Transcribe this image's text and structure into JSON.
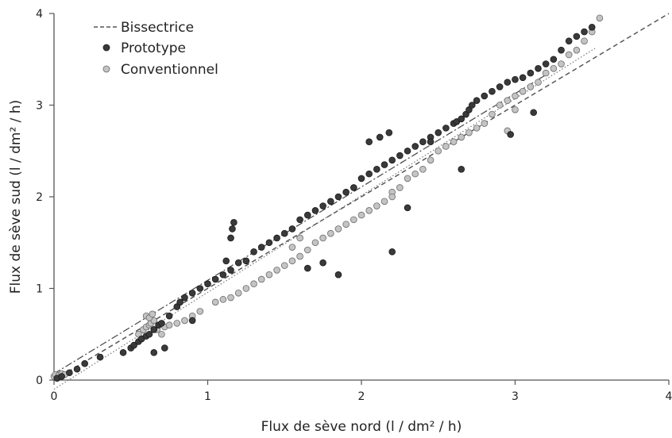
{
  "chart_data": {
    "type": "scatter",
    "xlabel": "Flux de sève nord (l / dm² / h)",
    "ylabel": "Flux de sève sud (l / dm² / h)",
    "xlim": [
      0,
      4
    ],
    "ylim": [
      0,
      4
    ],
    "xticks": [
      "0",
      "1",
      "2",
      "3",
      "4"
    ],
    "yticks": [
      "0",
      "1",
      "2",
      "3",
      "4"
    ],
    "grid": false,
    "legend_position": "top-left",
    "series": [
      {
        "name": "Bissectrice",
        "kind": "dashed-line",
        "color": "#555555",
        "x": [
          0,
          4
        ],
        "y": [
          0,
          4
        ]
      },
      {
        "name": "Prototype",
        "kind": "points",
        "color": "#3a3a3a",
        "edge": "#1a1a1a",
        "x": [
          0.02,
          0.05,
          0.1,
          0.15,
          0.2,
          0.3,
          0.45,
          0.5,
          0.52,
          0.55,
          0.57,
          0.6,
          0.62,
          0.65,
          0.68,
          0.7,
          0.75,
          0.8,
          0.82,
          0.85,
          0.9,
          0.95,
          1.0,
          1.05,
          1.1,
          1.15,
          1.2,
          1.25,
          1.3,
          1.35,
          1.4,
          1.45,
          1.5,
          1.55,
          1.6,
          1.65,
          1.7,
          1.75,
          1.8,
          1.85,
          1.9,
          1.95,
          2.0,
          2.05,
          2.1,
          2.15,
          2.2,
          2.25,
          2.3,
          2.35,
          2.4,
          2.45,
          2.5,
          2.55,
          2.6,
          2.62,
          2.65,
          2.68,
          2.7,
          2.72,
          2.75,
          2.8,
          2.85,
          2.9,
          2.95,
          3.0,
          3.05,
          3.1,
          3.15,
          3.2,
          3.25,
          3.3,
          3.35,
          3.4,
          3.45,
          3.5,
          1.15,
          1.16,
          1.17,
          1.12,
          2.2,
          2.3,
          2.65,
          2.97,
          3.12,
          1.85,
          1.65,
          1.75,
          2.05,
          2.12,
          2.18,
          2.45,
          0.65,
          0.72,
          0.9
        ],
        "y": [
          0.02,
          0.04,
          0.08,
          0.12,
          0.18,
          0.25,
          0.3,
          0.35,
          0.38,
          0.42,
          0.45,
          0.48,
          0.5,
          0.55,
          0.6,
          0.62,
          0.7,
          0.8,
          0.85,
          0.9,
          0.95,
          1.0,
          1.05,
          1.1,
          1.15,
          1.2,
          1.28,
          1.3,
          1.4,
          1.45,
          1.5,
          1.55,
          1.6,
          1.65,
          1.75,
          1.8,
          1.85,
          1.9,
          1.95,
          2.0,
          2.05,
          2.1,
          2.2,
          2.25,
          2.3,
          2.35,
          2.4,
          2.45,
          2.5,
          2.55,
          2.6,
          2.65,
          2.7,
          2.75,
          2.8,
          2.82,
          2.85,
          2.9,
          2.95,
          3.0,
          3.05,
          3.1,
          3.15,
          3.2,
          3.25,
          3.28,
          3.3,
          3.35,
          3.4,
          3.45,
          3.5,
          3.6,
          3.7,
          3.75,
          3.8,
          3.85,
          1.55,
          1.65,
          1.72,
          1.3,
          1.4,
          1.88,
          2.3,
          2.68,
          2.92,
          1.15,
          1.22,
          1.28,
          2.6,
          2.65,
          2.7,
          2.6,
          0.3,
          0.35,
          0.65
        ]
      },
      {
        "name": "Conventionnel",
        "kind": "points",
        "color": "#c4c4c4",
        "edge": "#6a6a6a",
        "x": [
          0.0,
          0.01,
          0.03,
          0.05,
          0.07,
          0.55,
          0.58,
          0.6,
          0.62,
          0.63,
          0.65,
          0.67,
          0.7,
          0.72,
          0.75,
          0.8,
          0.85,
          0.9,
          0.95,
          1.05,
          1.1,
          1.15,
          1.2,
          1.25,
          1.3,
          1.35,
          1.4,
          1.45,
          1.5,
          1.55,
          1.6,
          1.65,
          1.7,
          1.75,
          1.8,
          1.85,
          1.9,
          1.95,
          2.0,
          2.05,
          2.1,
          2.15,
          2.2,
          2.25,
          2.3,
          2.35,
          2.4,
          2.45,
          2.5,
          2.55,
          2.6,
          2.65,
          2.7,
          2.75,
          2.8,
          2.85,
          2.9,
          2.95,
          3.0,
          3.05,
          3.1,
          3.15,
          3.2,
          3.25,
          3.3,
          3.35,
          3.4,
          3.45,
          3.5,
          3.55,
          2.95,
          3.0,
          1.6,
          1.55,
          2.2,
          0.6,
          0.62,
          0.64
        ],
        "y": [
          0.04,
          0.06,
          0.05,
          0.07,
          0.06,
          0.5,
          0.55,
          0.58,
          0.6,
          0.62,
          0.65,
          0.55,
          0.5,
          0.58,
          0.6,
          0.62,
          0.65,
          0.7,
          0.75,
          0.85,
          0.88,
          0.9,
          0.95,
          1.0,
          1.05,
          1.1,
          1.15,
          1.2,
          1.25,
          1.3,
          1.35,
          1.42,
          1.5,
          1.55,
          1.6,
          1.65,
          1.7,
          1.75,
          1.8,
          1.85,
          1.9,
          1.95,
          2.05,
          2.1,
          2.2,
          2.25,
          2.3,
          2.4,
          2.5,
          2.55,
          2.6,
          2.65,
          2.7,
          2.75,
          2.8,
          2.9,
          3.0,
          3.05,
          3.1,
          3.15,
          3.2,
          3.25,
          3.35,
          3.4,
          3.45,
          3.55,
          3.6,
          3.7,
          3.8,
          3.95,
          2.72,
          2.95,
          1.55,
          1.45,
          2.0,
          0.7,
          0.68,
          0.72
        ]
      }
    ],
    "trendlines": [
      {
        "of": "Prototype",
        "style": "dash-dot",
        "color": "#444444",
        "x": [
          0,
          3.2
        ],
        "y": [
          0.07,
          3.33
        ]
      },
      {
        "of": "Conventionnel",
        "style": "dotted",
        "color": "#777777",
        "x": [
          0,
          3.52
        ],
        "y": [
          -0.1,
          3.62
        ]
      }
    ]
  }
}
